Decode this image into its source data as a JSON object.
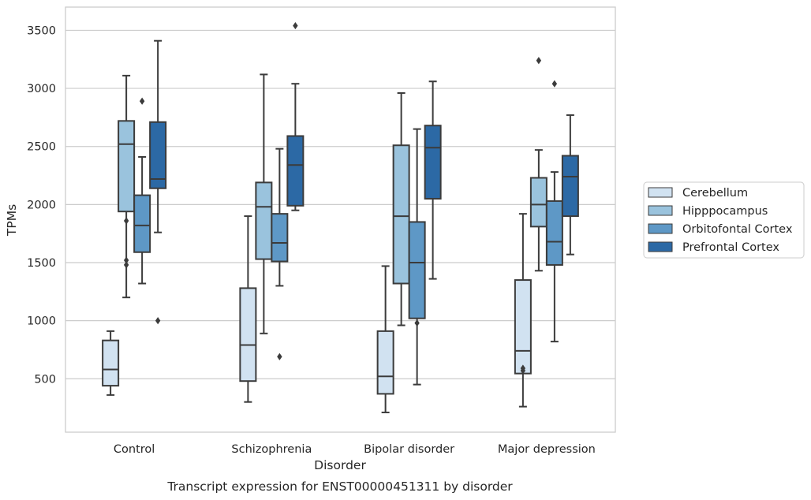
{
  "caption": "Transcript expression for ENST00000451311 by disorder",
  "chart_data": {
    "type": "box",
    "title": "",
    "xlabel": "Disorder",
    "ylabel": "TPMs",
    "categories": [
      "Control",
      "Schizophrenia",
      "Bipolar disorder",
      "Major depression"
    ],
    "ylim": [
      40,
      3700
    ],
    "yticks": [
      500,
      1000,
      1500,
      2000,
      2500,
      3000,
      3500
    ],
    "grid": true,
    "legend_position": "right",
    "series": [
      {
        "name": "Cerebellum",
        "color": "#d1e2f1",
        "boxes": [
          {
            "whisker_low": 360,
            "q1": 440,
            "median": 580,
            "q3": 830,
            "whisker_high": 910,
            "outliers": []
          },
          {
            "whisker_low": 300,
            "q1": 480,
            "median": 790,
            "q3": 1280,
            "whisker_high": 1900,
            "outliers": []
          },
          {
            "whisker_low": 210,
            "q1": 370,
            "median": 520,
            "q3": 910,
            "whisker_high": 1470,
            "outliers": []
          },
          {
            "whisker_low": 260,
            "q1": 545,
            "median": 740,
            "q3": 1350,
            "whisker_high": 1920,
            "outliers": [
              570,
              590
            ]
          }
        ]
      },
      {
        "name": "Hipppocampus",
        "color": "#9ac3dd",
        "boxes": [
          {
            "whisker_low": 1200,
            "q1": 1940,
            "median": 2520,
            "q3": 2720,
            "whisker_high": 3110,
            "outliers": [
              1480,
              1520,
              1860
            ]
          },
          {
            "whisker_low": 890,
            "q1": 1530,
            "median": 1980,
            "q3": 2190,
            "whisker_high": 3120,
            "outliers": []
          },
          {
            "whisker_low": 960,
            "q1": 1320,
            "median": 1900,
            "q3": 2510,
            "whisker_high": 2960,
            "outliers": []
          },
          {
            "whisker_low": 1430,
            "q1": 1810,
            "median": 2000,
            "q3": 2230,
            "whisker_high": 2470,
            "outliers": [
              3240
            ]
          }
        ]
      },
      {
        "name": "Orbitofontal Cortex",
        "color": "#5e98c6",
        "boxes": [
          {
            "whisker_low": 1320,
            "q1": 1590,
            "median": 1820,
            "q3": 2080,
            "whisker_high": 2410,
            "outliers": [
              2890
            ]
          },
          {
            "whisker_low": 1300,
            "q1": 1510,
            "median": 1670,
            "q3": 1920,
            "whisker_high": 2480,
            "outliers": [
              690
            ]
          },
          {
            "whisker_low": 450,
            "q1": 1020,
            "median": 1500,
            "q3": 1850,
            "whisker_high": 2650,
            "outliers": [
              980
            ]
          },
          {
            "whisker_low": 820,
            "q1": 1480,
            "median": 1680,
            "q3": 2030,
            "whisker_high": 2280,
            "outliers": [
              3040
            ]
          }
        ]
      },
      {
        "name": "Prefrontal Cortex",
        "color": "#2c69a5",
        "boxes": [
          {
            "whisker_low": 1760,
            "q1": 2140,
            "median": 2220,
            "q3": 2710,
            "whisker_high": 3410,
            "outliers": [
              1000
            ]
          },
          {
            "whisker_low": 1950,
            "q1": 1990,
            "median": 2340,
            "q3": 2590,
            "whisker_high": 3040,
            "outliers": [
              3540
            ]
          },
          {
            "whisker_low": 1360,
            "q1": 2050,
            "median": 2490,
            "q3": 2680,
            "whisker_high": 3060,
            "outliers": []
          },
          {
            "whisker_low": 1570,
            "q1": 1900,
            "median": 2240,
            "q3": 2420,
            "whisker_high": 2770,
            "outliers": []
          }
        ]
      }
    ]
  }
}
